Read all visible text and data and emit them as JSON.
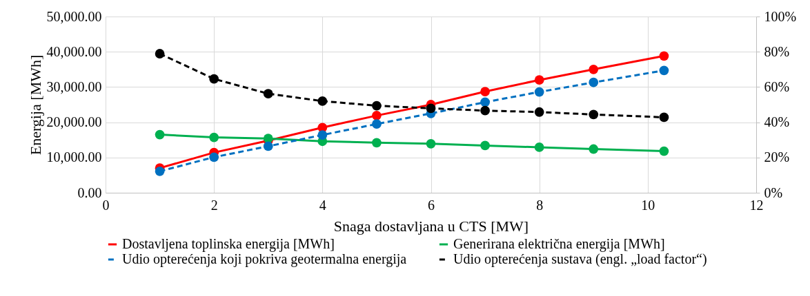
{
  "chart_data": {
    "type": "line",
    "xlabel": "Snaga dostavljana u CTS [MW]",
    "ylabel": "Energija [MWh]",
    "xlim": [
      0,
      12
    ],
    "xticks": [
      0,
      2,
      4,
      6,
      8,
      10,
      12
    ],
    "ylim": [
      0,
      50000
    ],
    "yticks": [
      {
        "value": 0,
        "label": "0.00"
      },
      {
        "value": 10000,
        "label": "10,000.00"
      },
      {
        "value": 20000,
        "label": "20,000.00"
      },
      {
        "value": 30000,
        "label": "30,000.00"
      },
      {
        "value": 40000,
        "label": "40,000.00"
      },
      {
        "value": 50000,
        "label": "50,000.00"
      }
    ],
    "y2lim": [
      0,
      100
    ],
    "y2ticks": [
      {
        "value": 0,
        "label": "0%"
      },
      {
        "value": 20,
        "label": "20%"
      },
      {
        "value": 40,
        "label": "40%"
      },
      {
        "value": 60,
        "label": "60%"
      },
      {
        "value": 80,
        "label": "80%"
      },
      {
        "value": 100,
        "label": "100%"
      }
    ],
    "x": [
      1,
      2,
      3,
      4,
      5,
      6,
      7,
      8,
      9,
      10.3
    ],
    "grid": true,
    "legend": "bottom",
    "marker": "circle",
    "series": [
      {
        "name": "Dostavljena toplinska energija [MWh]",
        "color": "#ff0000",
        "line_style": "solid",
        "values": [
          7000,
          11400,
          14800,
          18500,
          21900,
          25000,
          28700,
          32000,
          35000,
          38800
        ]
      },
      {
        "name": "Generirana električna energija [MWh]",
        "color": "#00b050",
        "line_style": "solid",
        "values": [
          16500,
          15700,
          15400,
          14600,
          14200,
          13900,
          13400,
          12900,
          12400,
          11800
        ]
      },
      {
        "name": "Udio opterećenja koji pokriva geotermalna energija",
        "color": "#0070c0",
        "line_style": "dashed",
        "values": [
          6100,
          10100,
          13200,
          16400,
          19500,
          22500,
          25700,
          28600,
          31300,
          34700
        ]
      },
      {
        "name": "Udio opterećenja sustava (engl. „load factor“)",
        "color": "#000000",
        "line_style": "dashed",
        "axis": "y2",
        "values": [
          78.9,
          64.6,
          56.2,
          52.0,
          49.4,
          47.9,
          46.6,
          45.8,
          44.4,
          42.8
        ]
      }
    ]
  }
}
